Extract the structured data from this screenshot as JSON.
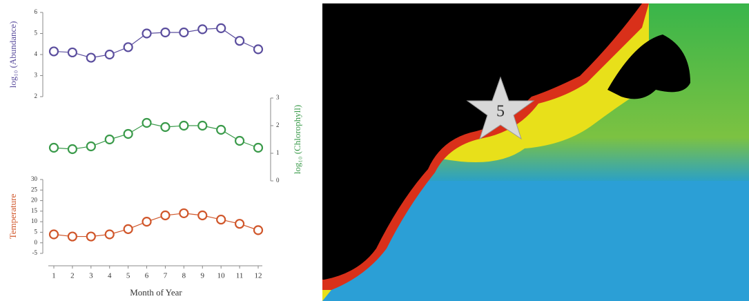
{
  "chart_data": [
    {
      "type": "line",
      "y_label": "log₁₀ (Abundance)",
      "y_axis_side": "left",
      "color": "#5b4e9e",
      "x": [
        1,
        2,
        3,
        4,
        5,
        6,
        7,
        8,
        9,
        10,
        11,
        12
      ],
      "xlim": [
        1,
        12
      ],
      "values": [
        4.15,
        4.1,
        3.85,
        4.0,
        4.35,
        5.0,
        5.05,
        5.05,
        5.2,
        5.25,
        4.65,
        4.25
      ],
      "ylim": [
        2,
        6
      ],
      "yticks": [
        2,
        3,
        4,
        5,
        6
      ]
    },
    {
      "type": "line",
      "y_label": "log₁₀ (Chlorophyll)",
      "y_axis_side": "right",
      "color": "#3a9a4a",
      "x": [
        1,
        2,
        3,
        4,
        5,
        6,
        7,
        8,
        9,
        10,
        11,
        12
      ],
      "xlim": [
        1,
        12
      ],
      "values": [
        1.2,
        1.15,
        1.25,
        1.5,
        1.7,
        2.1,
        1.95,
        2.0,
        2.0,
        1.85,
        1.45,
        1.2
      ],
      "ylim": [
        0,
        3
      ],
      "yticks": [
        0,
        1,
        2,
        3
      ]
    },
    {
      "type": "line",
      "y_label": "Temperature",
      "x_label": "Month of Year",
      "y_axis_side": "left",
      "color": "#d0562a",
      "x": [
        1,
        2,
        3,
        4,
        5,
        6,
        7,
        8,
        9,
        10,
        11,
        12
      ],
      "xlim": [
        1,
        12
      ],
      "xticks": [
        1,
        2,
        3,
        4,
        5,
        6,
        7,
        8,
        9,
        10,
        11,
        12
      ],
      "values": [
        4,
        3,
        3,
        4,
        6.5,
        10,
        13,
        14,
        13,
        11,
        9,
        6
      ],
      "ylim": [
        -5,
        30
      ],
      "yticks": [
        -5,
        0,
        5,
        10,
        15,
        20,
        25,
        30
      ]
    }
  ],
  "map": {
    "marker_label": "5"
  }
}
